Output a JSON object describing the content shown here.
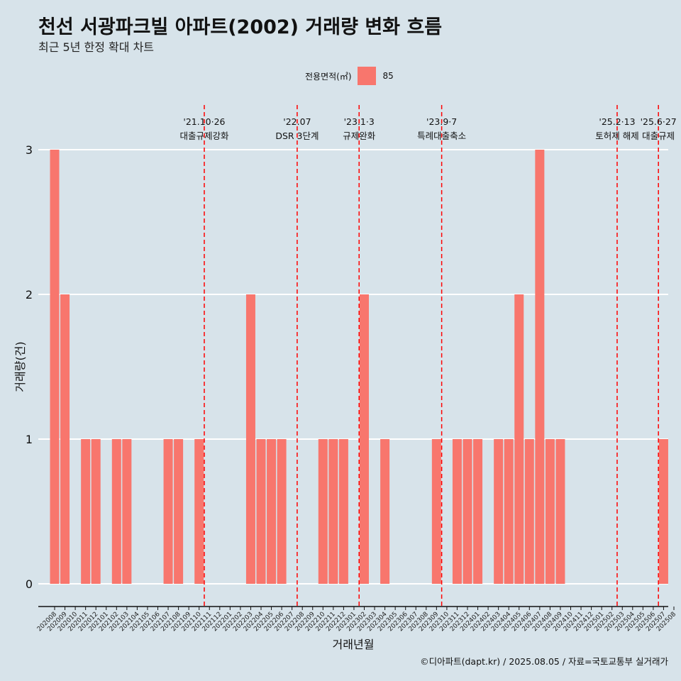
{
  "header": {
    "title": "천선 서광파크빌 아파트(2002) 거래량 변화 흐름",
    "subtitle": "최근 5년 한정 확대 차트"
  },
  "legend": {
    "title": "전용면적(㎡)",
    "label": "85",
    "color": "#f8766d"
  },
  "caption": "©디아파트(dapt.kr) / 2025.08.05 / 자료=국토교통부 실거래가",
  "chart_data": {
    "type": "bar",
    "xlabel": "거래년월",
    "ylabel": "거래량(건)",
    "ylim": [
      0,
      3
    ],
    "yticks": [
      0,
      1,
      2,
      3
    ],
    "grid": true,
    "legend_position": "top",
    "categories": [
      "202008",
      "202009",
      "202010",
      "202011",
      "202012",
      "202101",
      "202102",
      "202103",
      "202104",
      "202105",
      "202106",
      "202107",
      "202108",
      "202109",
      "202110",
      "202111",
      "202112",
      "202201",
      "202202",
      "202203",
      "202204",
      "202205",
      "202206",
      "202207",
      "202208",
      "202209",
      "202210",
      "202211",
      "202212",
      "202301",
      "202302",
      "202303",
      "202304",
      "202305",
      "202306",
      "202307",
      "202308",
      "202309",
      "202310",
      "202311",
      "202312",
      "202401",
      "202402",
      "202403",
      "202404",
      "202405",
      "202406",
      "202407",
      "202408",
      "202409",
      "202410",
      "202411",
      "202412",
      "202501",
      "202502",
      "202503",
      "202504",
      "202505",
      "202506",
      "202507",
      "202508"
    ],
    "series": [
      {
        "name": "85",
        "color": "#f8766d",
        "values": [
          3,
          2,
          0,
          1,
          1,
          0,
          1,
          1,
          0,
          0,
          0,
          1,
          1,
          0,
          1,
          0,
          0,
          0,
          0,
          2,
          1,
          1,
          1,
          0,
          0,
          0,
          1,
          1,
          1,
          0,
          2,
          0,
          1,
          0,
          0,
          0,
          0,
          1,
          0,
          1,
          1,
          1,
          0,
          1,
          1,
          2,
          1,
          3,
          1,
          1,
          0,
          0,
          0,
          0,
          0,
          0,
          0,
          0,
          0,
          1,
          0
        ]
      }
    ],
    "annotations": [
      {
        "x": "202110",
        "date": "'21.10·26",
        "label": "대출규제강화"
      },
      {
        "x": "202207",
        "date": "'22.07",
        "label": "DSR 3단계"
      },
      {
        "x": "202301",
        "date": "'23.1·3",
        "label": "규제완화"
      },
      {
        "x": "202309",
        "date": "'23.9·7",
        "label": "특례대출축소"
      },
      {
        "x": "202502",
        "date": "'25.2·13",
        "label": "토허제 해제"
      },
      {
        "x": "202506",
        "date": "'25.6·27",
        "label": "대출규제"
      }
    ]
  }
}
